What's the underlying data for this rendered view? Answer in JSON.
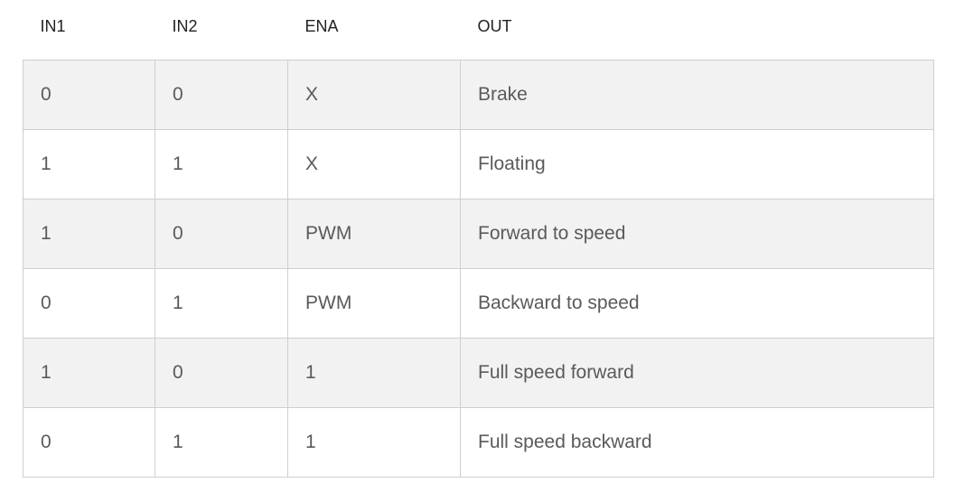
{
  "table": {
    "headers": [
      "IN1",
      "IN2",
      "ENA",
      "OUT"
    ],
    "rows": [
      [
        "0",
        "0",
        "X",
        "Brake"
      ],
      [
        "1",
        "1",
        "X",
        "Floating"
      ],
      [
        "1",
        "0",
        "PWM",
        "Forward to speed"
      ],
      [
        "0",
        "1",
        "PWM",
        "Backward to speed"
      ],
      [
        "1",
        "0",
        "1",
        "Full speed forward"
      ],
      [
        "0",
        "1",
        "1",
        "Full speed backward"
      ]
    ]
  }
}
